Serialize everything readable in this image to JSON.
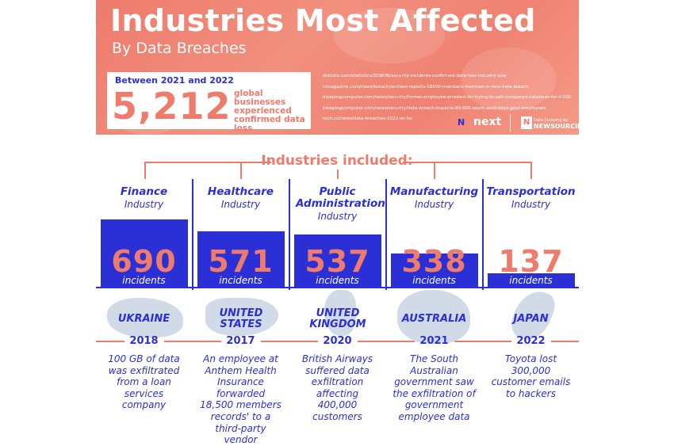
{
  "header": {
    "title": "Industries Most Affected",
    "subtitle": "By Data Breaches",
    "stat_label": "Between 2021 and 2022",
    "stat_number": "5,212",
    "stat_desc": "global businesses experienced confirmed data loss",
    "sources": [
      "statista.com/statistics/329606/security-incidents-confirmed-data-loss-industry-size",
      "nimagazine.com/news/breach/anthem-reports-18500-members-involved-in-new-data-breach",
      "bleepingcomputer.com/news/security/former-employee-arrested-for-trying-to-sell-companys-database-for-4-000",
      "bleepingcomputer.com/news/security/data-breach-impacts-80-000-south-australian-govt-employees",
      "tech.co/news/data-breaches-2022-so-far"
    ],
    "logo_next": "next",
    "logo_newsourcing": "NEWSOURCING"
  },
  "section_title": "Industries included:",
  "industries": [
    {
      "name": "Finance",
      "sub": "Industry",
      "value": 690,
      "value_label": "690",
      "incidents": "incidents",
      "country": "UKRAINE",
      "year": "2018",
      "desc": "100 GB of data was exfiltrated from a loan services company"
    },
    {
      "name": "Healthcare",
      "sub": "Industry",
      "value": 571,
      "value_label": "571",
      "incidents": "incidents",
      "country": "UNITED STATES",
      "year": "2017",
      "desc": "An employee at Anthem Health Insurance forwarded 18,500 members records' to a third-party vendor"
    },
    {
      "name": "Public Administration",
      "sub": "Industry",
      "value": 537,
      "value_label": "537",
      "incidents": "incidents",
      "country": "UNITED KINGDOM",
      "year": "2020",
      "desc": "British Airways suffered data exfiltration affecting 400,000 customers"
    },
    {
      "name": "Manufacturing",
      "sub": "Industry",
      "value": 338,
      "value_label": "338",
      "incidents": "incidents",
      "country": "AUSTRALIA",
      "year": "2021",
      "desc": "The South Australian government saw the exfiltration of government employee data"
    },
    {
      "name": "Transportation",
      "sub": "Industry",
      "value": 137,
      "value_label": "137",
      "incidents": "incidents",
      "country": "JAPAN",
      "year": "2022",
      "desc": "Toyota lost 300,000 customer emails to hackers"
    }
  ],
  "colors": {
    "coral": "#ee7b6c",
    "blue": "#2b2fd6",
    "map": "#c9d5e3"
  }
}
